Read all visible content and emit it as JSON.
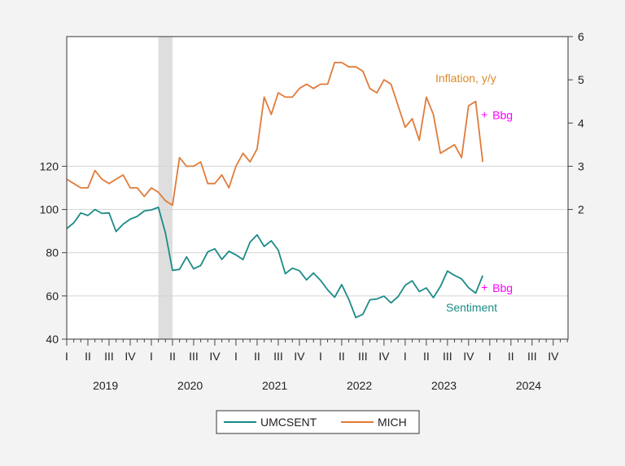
{
  "chart_data": {
    "type": "line",
    "title": "",
    "x_start": "2019-01",
    "x_end": "2024-12",
    "x_year_labels": [
      "2019",
      "2020",
      "2021",
      "2022",
      "2023",
      "2024"
    ],
    "x_quarter_labels": [
      "I",
      "II",
      "III",
      "IV"
    ],
    "left_axis": {
      "ylim": [
        40,
        180
      ],
      "ticks": [
        40,
        60,
        80,
        100,
        120
      ]
    },
    "right_axis": {
      "ylim": [
        -1,
        6
      ],
      "ticks": [
        2,
        3,
        4,
        5,
        6
      ]
    },
    "grid": true,
    "recession_shading": {
      "start": "2020-02",
      "end": "2020-04",
      "color": "#dedede"
    },
    "series": [
      {
        "name": "UMCSENT",
        "axis": "left",
        "color": "#1b8b87",
        "values": [
          91.2,
          93.8,
          98.4,
          97.2,
          100.0,
          98.2,
          98.4,
          89.8,
          93.2,
          95.5,
          96.8,
          99.3,
          99.8,
          101.0,
          89.1,
          71.8,
          72.3,
          78.1,
          72.5,
          74.1,
          80.4,
          81.8,
          76.9,
          80.7,
          79.0,
          76.8,
          84.9,
          88.3,
          82.9,
          85.5,
          81.2,
          70.3,
          72.8,
          71.7,
          67.4,
          70.6,
          67.2,
          62.8,
          59.4,
          65.2,
          58.4,
          50.0,
          51.5,
          58.2,
          58.6,
          59.9,
          56.8,
          59.7,
          64.9,
          67.0,
          62.0,
          63.7,
          59.2,
          64.4,
          71.5,
          69.5,
          67.9,
          63.8,
          61.3,
          69.4
        ]
      },
      {
        "name": "MICH",
        "axis": "right",
        "color": "#e07b39",
        "values": [
          2.7,
          2.6,
          2.5,
          2.5,
          2.9,
          2.7,
          2.6,
          2.7,
          2.8,
          2.5,
          2.5,
          2.3,
          2.5,
          2.4,
          2.2,
          2.1,
          3.2,
          3.0,
          3.0,
          3.1,
          2.6,
          2.6,
          2.8,
          2.5,
          3.0,
          3.3,
          3.1,
          3.4,
          4.6,
          4.2,
          4.7,
          4.6,
          4.6,
          4.8,
          4.9,
          4.8,
          4.9,
          4.9,
          5.4,
          5.4,
          5.3,
          5.3,
          5.2,
          4.8,
          4.7,
          5.0,
          4.9,
          4.4,
          3.9,
          4.1,
          3.6,
          4.6,
          4.2,
          3.3,
          3.4,
          3.5,
          3.2,
          4.4,
          4.5,
          3.1
        ]
      }
    ],
    "annotations": {
      "inflation_label": "Inflation, y/y",
      "sentiment_label": "Sentiment",
      "bbg_label": "Bbg",
      "bbg_marker": "+",
      "bbg_color": "#ff00ff",
      "bbg_inflation": {
        "date": "2023-12",
        "value": 4.2
      },
      "bbg_sentiment": {
        "date": "2023-12",
        "value": 64
      }
    },
    "legend": {
      "placement": "bottom",
      "entries": [
        "UMCSENT",
        "MICH"
      ]
    }
  }
}
